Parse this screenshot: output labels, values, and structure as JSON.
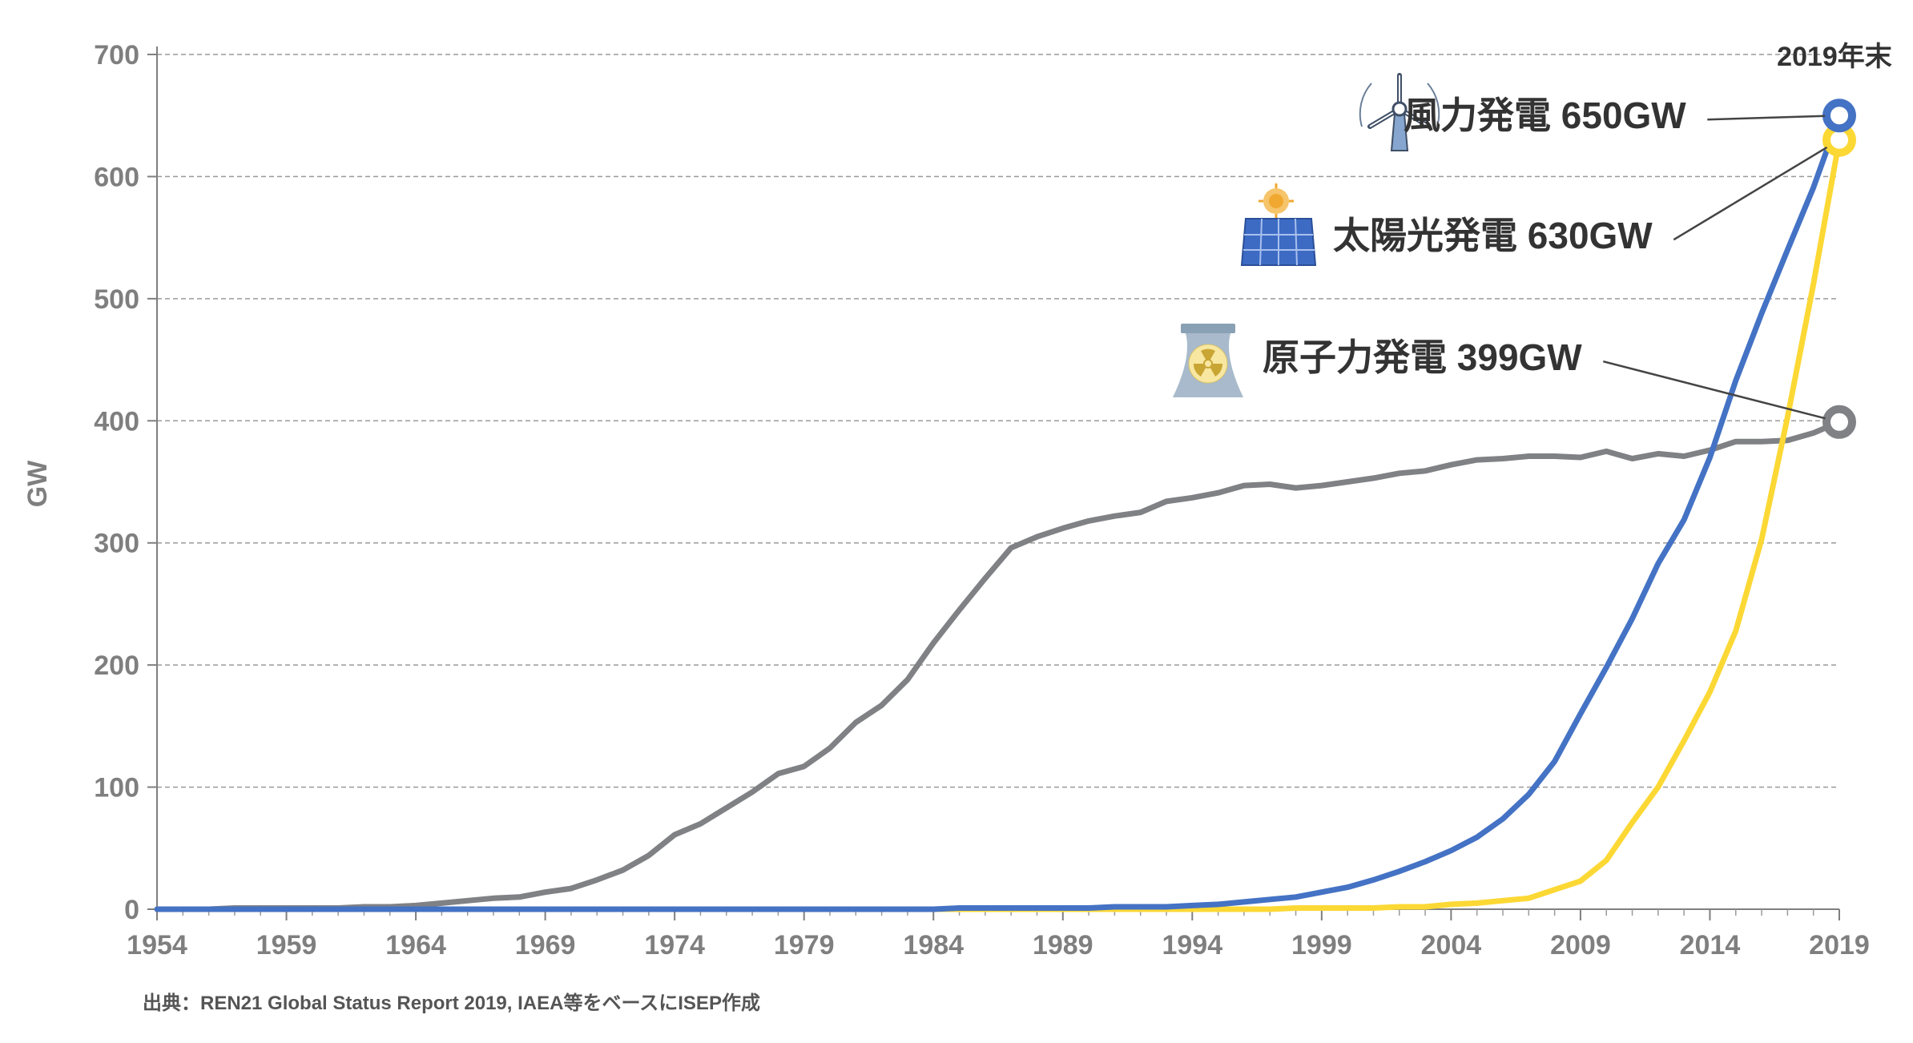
{
  "chart_data": {
    "type": "line",
    "ylabel": "GW",
    "xlabel": "",
    "xlim": [
      1954,
      2019
    ],
    "ylim": [
      0,
      700
    ],
    "x_ticks": [
      "1954",
      "1959",
      "1964",
      "1969",
      "1974",
      "1979",
      "1984",
      "1989",
      "1994",
      "1999",
      "2004",
      "2009",
      "2014",
      "2019"
    ],
    "y_ticks": [
      "0",
      "100",
      "200",
      "300",
      "400",
      "500",
      "600",
      "700"
    ],
    "grid": "horizontal dashed",
    "x": [
      1954,
      1955,
      1956,
      1957,
      1958,
      1959,
      1960,
      1961,
      1962,
      1963,
      1964,
      1965,
      1966,
      1967,
      1968,
      1969,
      1970,
      1971,
      1972,
      1973,
      1974,
      1975,
      1976,
      1977,
      1978,
      1979,
      1980,
      1981,
      1982,
      1983,
      1984,
      1985,
      1986,
      1987,
      1988,
      1989,
      1990,
      1991,
      1992,
      1993,
      1994,
      1995,
      1996,
      1997,
      1998,
      1999,
      2000,
      2001,
      2002,
      2003,
      2004,
      2005,
      2006,
      2007,
      2008,
      2009,
      2010,
      2011,
      2012,
      2013,
      2014,
      2015,
      2016,
      2017,
      2018,
      2019
    ],
    "series": [
      {
        "name": "原子力発電",
        "color": "#7f8185",
        "values": [
          0,
          0,
          0,
          1,
          1,
          1,
          1,
          1,
          2,
          2,
          3,
          5,
          7,
          9,
          10,
          14,
          17,
          24,
          32,
          44,
          61,
          70,
          83,
          96,
          111,
          117,
          132,
          153,
          167,
          188,
          218,
          245,
          271,
          296,
          305,
          312,
          318,
          322,
          325,
          334,
          337,
          341,
          347,
          348,
          345,
          347,
          350,
          353,
          357,
          359,
          364,
          368,
          369,
          371,
          371,
          370,
          375,
          369,
          373,
          371,
          376,
          383,
          383,
          384,
          390,
          399
        ],
        "label": "原子力発電 399GW"
      },
      {
        "name": "風力発電",
        "color": "#4472c4",
        "values": [
          0,
          0,
          0,
          0,
          0,
          0,
          0,
          0,
          0,
          0,
          0,
          0,
          0,
          0,
          0,
          0,
          0,
          0,
          0,
          0,
          0,
          0,
          0,
          0,
          0,
          0,
          0,
          0,
          0,
          0,
          0,
          1,
          1,
          1,
          1,
          1,
          1,
          2,
          2,
          2,
          3,
          4,
          6,
          8,
          10,
          14,
          18,
          24,
          31,
          39,
          48,
          59,
          74,
          94,
          121,
          160,
          198,
          238,
          283,
          319,
          370,
          433,
          488,
          540,
          591,
          650
        ],
        "label": "風力発電 650GW"
      },
      {
        "name": "太陽光発電",
        "color": "#fcd835",
        "values": [
          0,
          0,
          0,
          0,
          0,
          0,
          0,
          0,
          0,
          0,
          0,
          0,
          0,
          0,
          0,
          0,
          0,
          0,
          0,
          0,
          0,
          0,
          0,
          0,
          0,
          0,
          0,
          0,
          0,
          0,
          0,
          0,
          0,
          0,
          0,
          0,
          0,
          0,
          0,
          0,
          0,
          0,
          0,
          0,
          1,
          1,
          1,
          1,
          2,
          2,
          4,
          5,
          7,
          9,
          16,
          23,
          40,
          71,
          100,
          138,
          178,
          228,
          303,
          403,
          512,
          630
        ],
        "label": "太陽光発電 630GW"
      }
    ],
    "annotation_top": "2019年末",
    "source": "出典：REN21 Global Status Report 2019, IAEA等をベースにISEP作成"
  },
  "icons": {
    "wind": "wind-turbine-icon",
    "solar": "solar-panel-icon",
    "nuclear": "nuclear-plant-icon"
  }
}
